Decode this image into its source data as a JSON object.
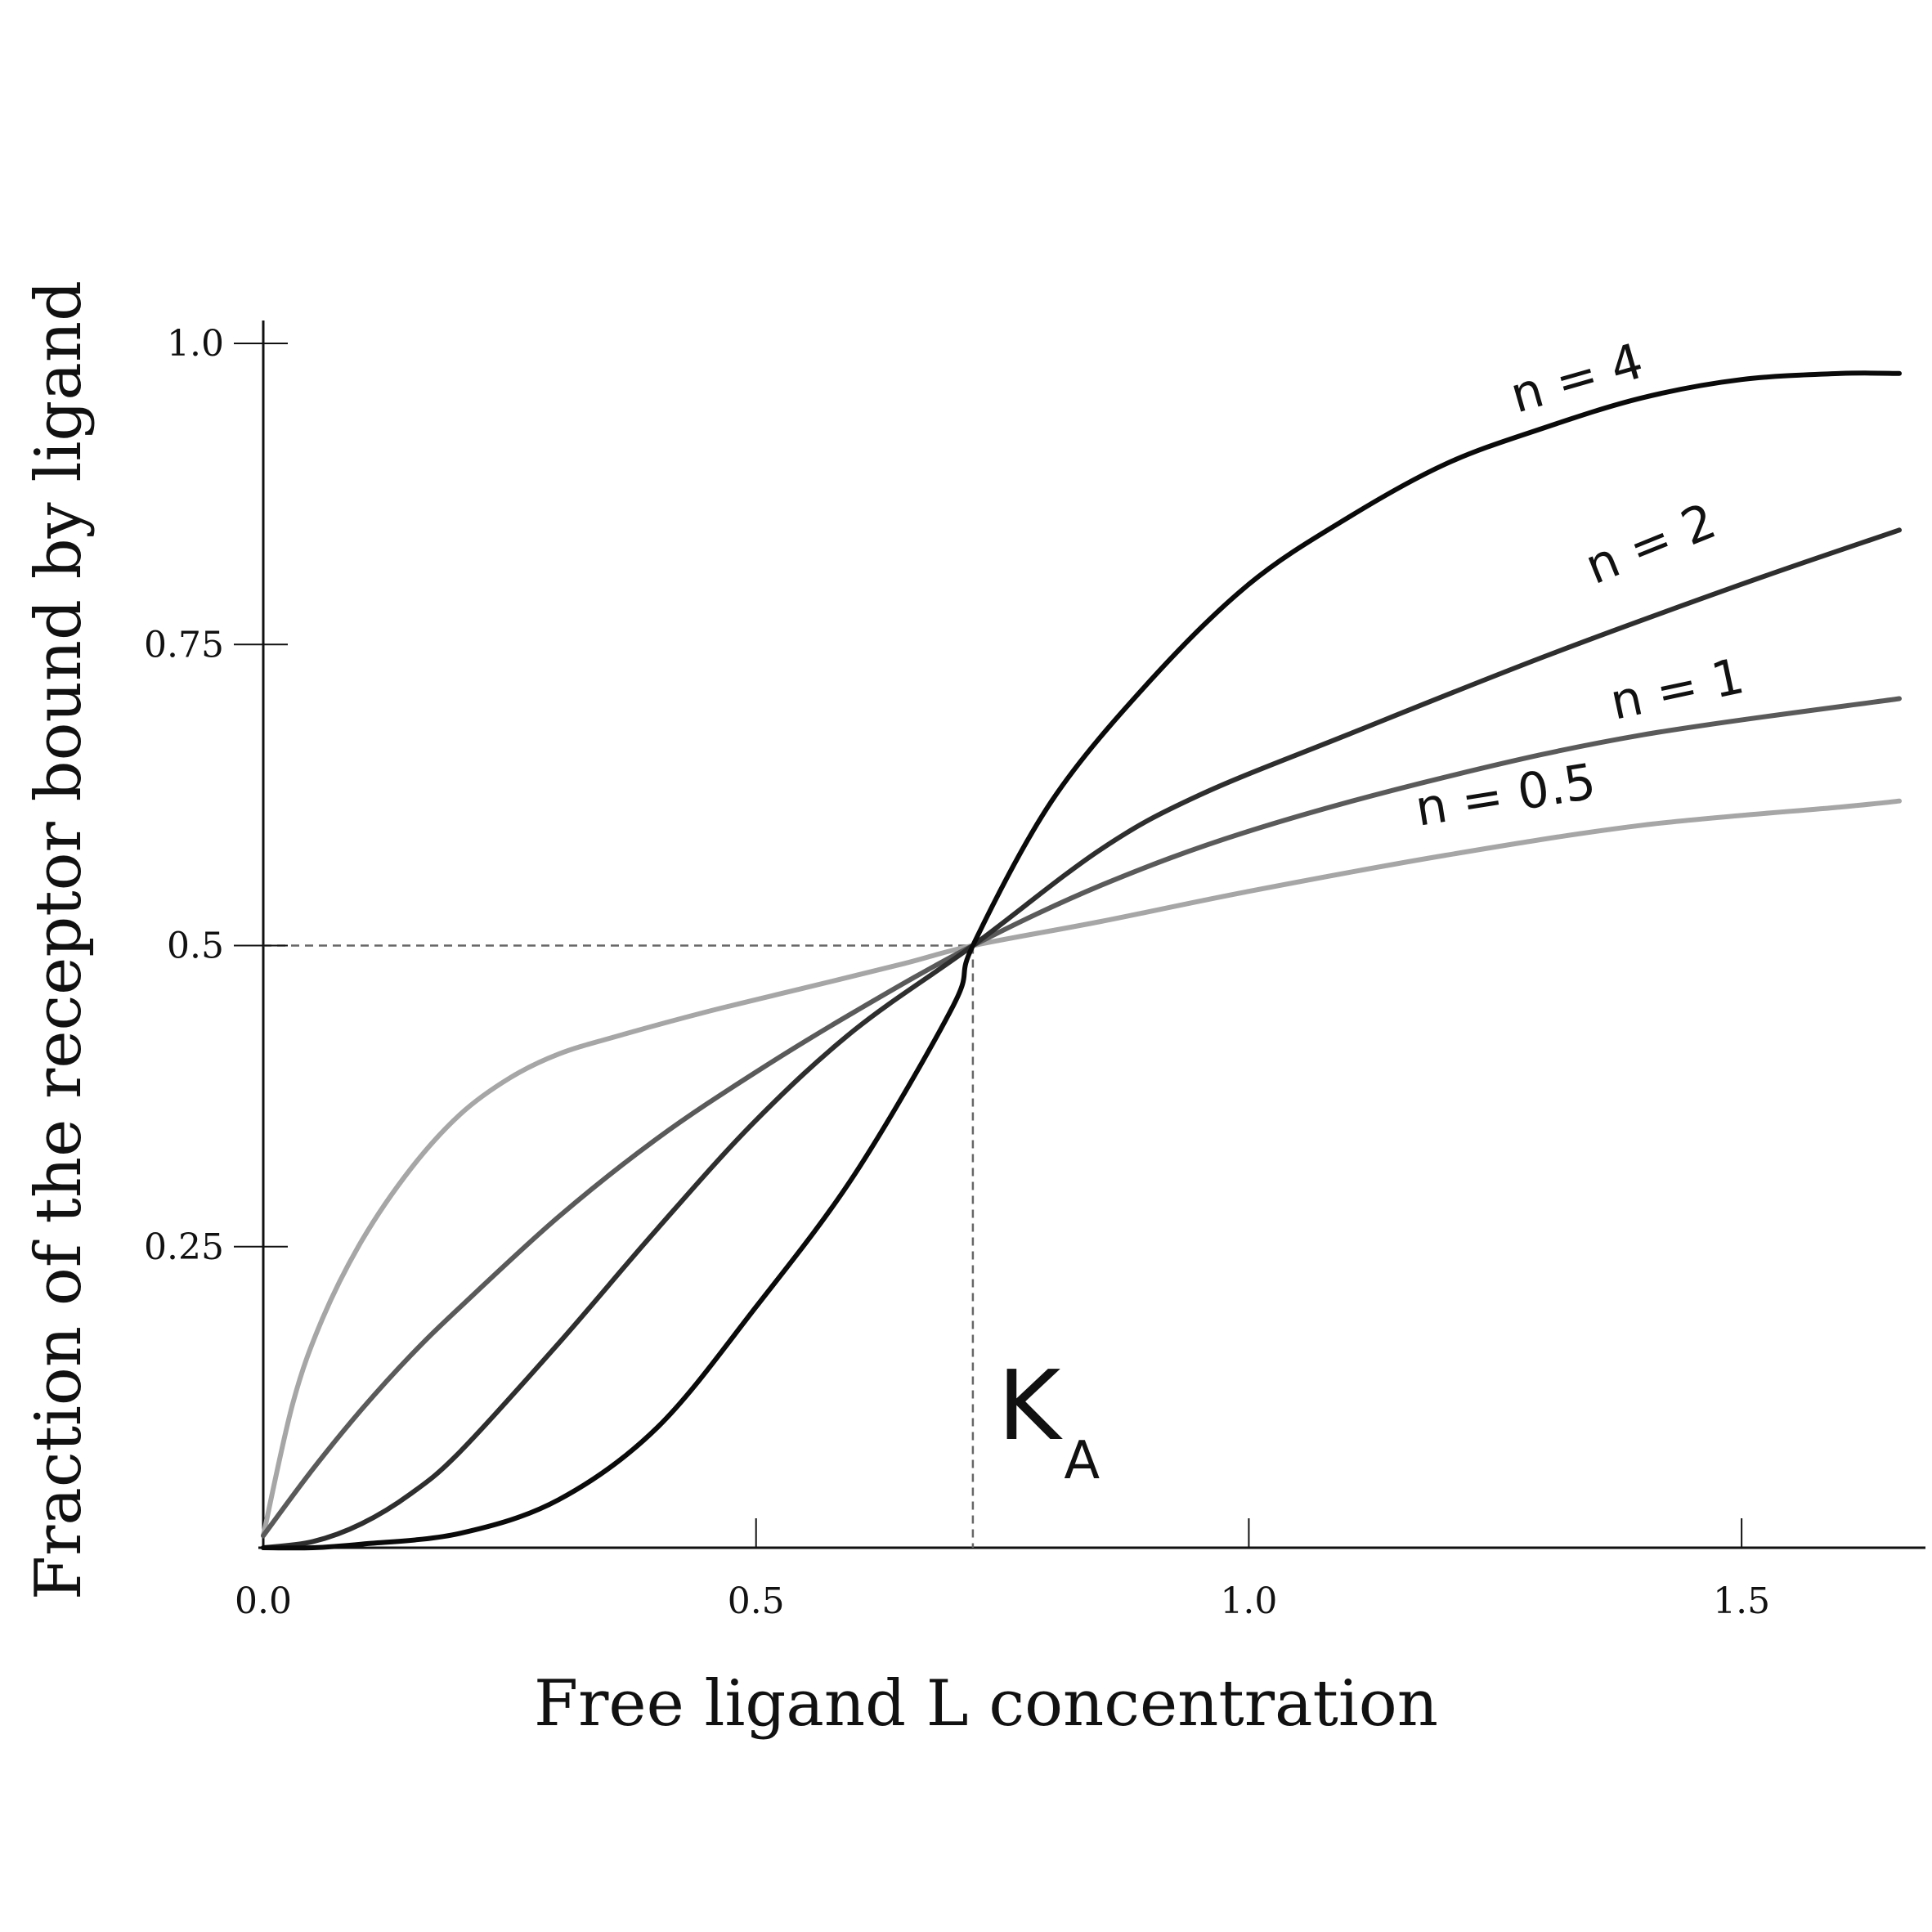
{
  "chart_data": {
    "type": "line",
    "title": "",
    "xlabel": "Free ligand L concentration",
    "ylabel": "Fraction of the receptor bound by ligand",
    "xlim": [
      0,
      1.66
    ],
    "ylim": [
      0,
      1.0
    ],
    "x_ticks": [
      "0.0",
      "0.5",
      "1.0",
      "1.5"
    ],
    "y_ticks": [
      "0.25",
      "0.5",
      "0.75",
      "1.0"
    ],
    "grid": false,
    "reference": {
      "x": 0.72,
      "y": 0.5,
      "label": "K",
      "label_sub": "A"
    },
    "series": [
      {
        "name": "n = 0.5",
        "color": "#a6a6a6",
        "x": [
          0.0,
          0.03,
          0.06,
          0.1,
          0.15,
          0.2,
          0.25,
          0.3,
          0.36,
          0.45,
          0.55,
          0.65,
          0.72,
          0.85,
          1.0,
          1.2,
          1.4,
          1.6,
          1.66
        ],
        "y": [
          0.01,
          0.12,
          0.19,
          0.255,
          0.315,
          0.36,
          0.39,
          0.41,
          0.425,
          0.445,
          0.465,
          0.485,
          0.5,
          0.52,
          0.545,
          0.575,
          0.6,
          0.615,
          0.62
        ]
      },
      {
        "name": "n = 1",
        "color": "#5a5a5a",
        "x": [
          0.0,
          0.05,
          0.1,
          0.15,
          0.2,
          0.3,
          0.4,
          0.5,
          0.6,
          0.72,
          0.85,
          1.0,
          1.2,
          1.4,
          1.66
        ],
        "y": [
          0.01,
          0.065,
          0.115,
          0.16,
          0.2,
          0.275,
          0.34,
          0.395,
          0.445,
          0.5,
          0.55,
          0.595,
          0.64,
          0.675,
          0.705
        ]
      },
      {
        "name": "n = 2",
        "color": "#2e2e2e",
        "x": [
          0.0,
          0.05,
          0.1,
          0.15,
          0.2,
          0.3,
          0.4,
          0.5,
          0.6,
          0.72,
          0.85,
          0.95,
          1.1,
          1.3,
          1.5,
          1.66
        ],
        "y": [
          0.0,
          0.005,
          0.02,
          0.045,
          0.08,
          0.17,
          0.265,
          0.355,
          0.43,
          0.5,
          0.58,
          0.625,
          0.675,
          0.74,
          0.8,
          0.845
        ]
      },
      {
        "name": "n = 4",
        "color": "#0a0a0a",
        "x": [
          0.0,
          0.05,
          0.1,
          0.2,
          0.3,
          0.4,
          0.5,
          0.6,
          0.7,
          0.72,
          0.8,
          0.9,
          1.0,
          1.1,
          1.2,
          1.3,
          1.4,
          1.5,
          1.6,
          1.66
        ],
        "y": [
          0.0,
          0.0,
          0.003,
          0.012,
          0.04,
          0.1,
          0.2,
          0.31,
          0.45,
          0.5,
          0.62,
          0.72,
          0.8,
          0.855,
          0.9,
          0.93,
          0.955,
          0.97,
          0.975,
          0.975
        ]
      }
    ]
  }
}
